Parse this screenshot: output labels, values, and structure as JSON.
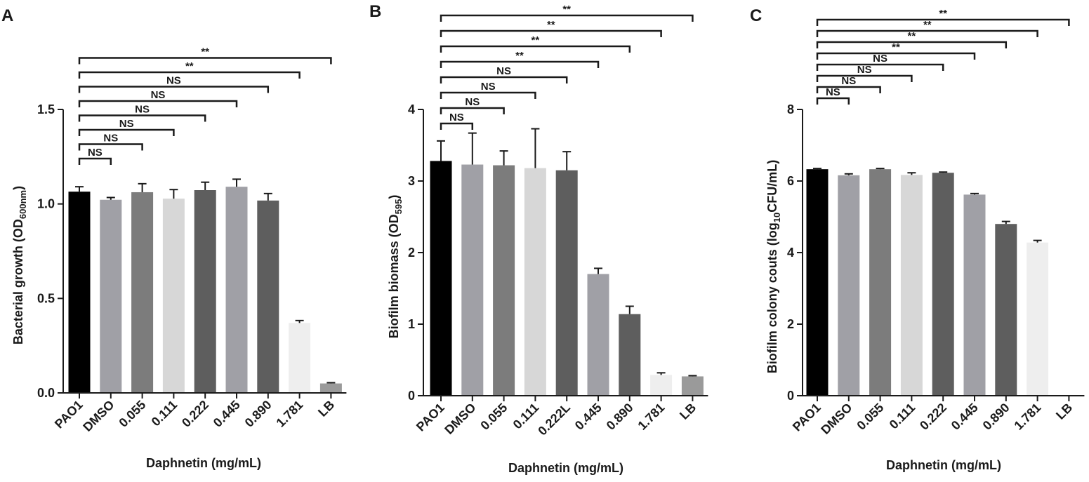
{
  "chart_data": [
    {
      "panel": "A",
      "type": "bar",
      "categories": [
        "PAO1",
        "DMSO",
        "0.055",
        "0.111",
        "0.222",
        "0.445",
        "0.890",
        "1.781",
        "LB"
      ],
      "values": [
        1.065,
        1.022,
        1.062,
        1.028,
        1.073,
        1.091,
        1.018,
        0.37,
        0.05
      ],
      "errors": [
        0.026,
        0.012,
        0.045,
        0.048,
        0.042,
        0.04,
        0.037,
        0.013,
        0.004
      ],
      "colors": [
        "#000000",
        "#a0a0a6",
        "#7c7c7c",
        "#d7d7d7",
        "#5e5e5e",
        "#a0a0a6",
        "#5e5e5e",
        "#eeeeee",
        "#9a9a9a"
      ],
      "xlabel": "Daphnetin (mg/mL)",
      "ylabel": "Bacterial growth (OD",
      "ylabel_sub": "600nm",
      "ylabel_end": ")",
      "ylim": [
        0,
        1.5
      ],
      "yticks": [
        "0.0",
        "0.5",
        "1.0",
        "1.5"
      ],
      "comparisons": [
        {
          "to": 1,
          "label": "NS"
        },
        {
          "to": 2,
          "label": "NS"
        },
        {
          "to": 3,
          "label": "NS"
        },
        {
          "to": 4,
          "label": "NS"
        },
        {
          "to": 5,
          "label": "NS"
        },
        {
          "to": 6,
          "label": "NS"
        },
        {
          "to": 7,
          "label": "**"
        },
        {
          "to": 8,
          "label": "**"
        }
      ]
    },
    {
      "panel": "B",
      "type": "bar",
      "categories": [
        "PAO1",
        "DMSO",
        "0.055",
        "0.111",
        "0.222L",
        "0.445",
        "0.890",
        "1.781",
        "LB"
      ],
      "values": [
        3.28,
        3.23,
        3.22,
        3.18,
        3.15,
        1.7,
        1.14,
        0.29,
        0.27
      ],
      "errors": [
        0.28,
        0.44,
        0.2,
        0.55,
        0.26,
        0.08,
        0.11,
        0.03,
        0.01
      ],
      "colors": [
        "#000000",
        "#a0a0a6",
        "#7c7c7c",
        "#d7d7d7",
        "#5e5e5e",
        "#a0a0a6",
        "#5e5e5e",
        "#eeeeee",
        "#9a9a9a"
      ],
      "xlabel": "Daphnetin (mg/mL)",
      "ylabel": "Biofilm biomass (OD",
      "ylabel_sub": "595",
      "ylabel_end": ")",
      "ylim": [
        0,
        4
      ],
      "yticks": [
        "0",
        "1",
        "2",
        "3",
        "4"
      ],
      "comparisons": [
        {
          "to": 1,
          "label": "NS"
        },
        {
          "to": 2,
          "label": "NS"
        },
        {
          "to": 3,
          "label": "NS"
        },
        {
          "to": 4,
          "label": "NS"
        },
        {
          "to": 5,
          "label": "**"
        },
        {
          "to": 6,
          "label": "**"
        },
        {
          "to": 7,
          "label": "**"
        },
        {
          "to": 8,
          "label": "**"
        }
      ]
    },
    {
      "panel": "C",
      "type": "bar",
      "categories": [
        "PAO1",
        "DMSO",
        "0.055",
        "0.111",
        "0.222",
        "0.445",
        "0.890",
        "1.781",
        "LB"
      ],
      "values": [
        6.33,
        6.16,
        6.33,
        6.17,
        6.23,
        5.62,
        4.8,
        4.28,
        0
      ],
      "errors": [
        0.02,
        0.04,
        0.02,
        0.06,
        0.02,
        0.03,
        0.07,
        0.06,
        0
      ],
      "colors": [
        "#000000",
        "#a0a0a6",
        "#7c7c7c",
        "#d7d7d7",
        "#5e5e5e",
        "#a0a0a6",
        "#5e5e5e",
        "#eeeeee",
        "#9a9a9a"
      ],
      "xlabel": "Daphnetin (mg/mL)",
      "ylabel": "Biofilm colony couts (log",
      "ylabel_sub": "10",
      "ylabel_end": "CFU/mL)",
      "ylim": [
        0,
        8
      ],
      "yticks": [
        "0",
        "2",
        "4",
        "6",
        "8"
      ],
      "comparisons": [
        {
          "to": 1,
          "label": "NS"
        },
        {
          "to": 2,
          "label": "NS"
        },
        {
          "to": 3,
          "label": "NS"
        },
        {
          "to": 4,
          "label": "NS"
        },
        {
          "to": 5,
          "label": "**"
        },
        {
          "to": 6,
          "label": "**"
        },
        {
          "to": 7,
          "label": "**"
        },
        {
          "to": 8,
          "label": "**"
        }
      ]
    }
  ]
}
